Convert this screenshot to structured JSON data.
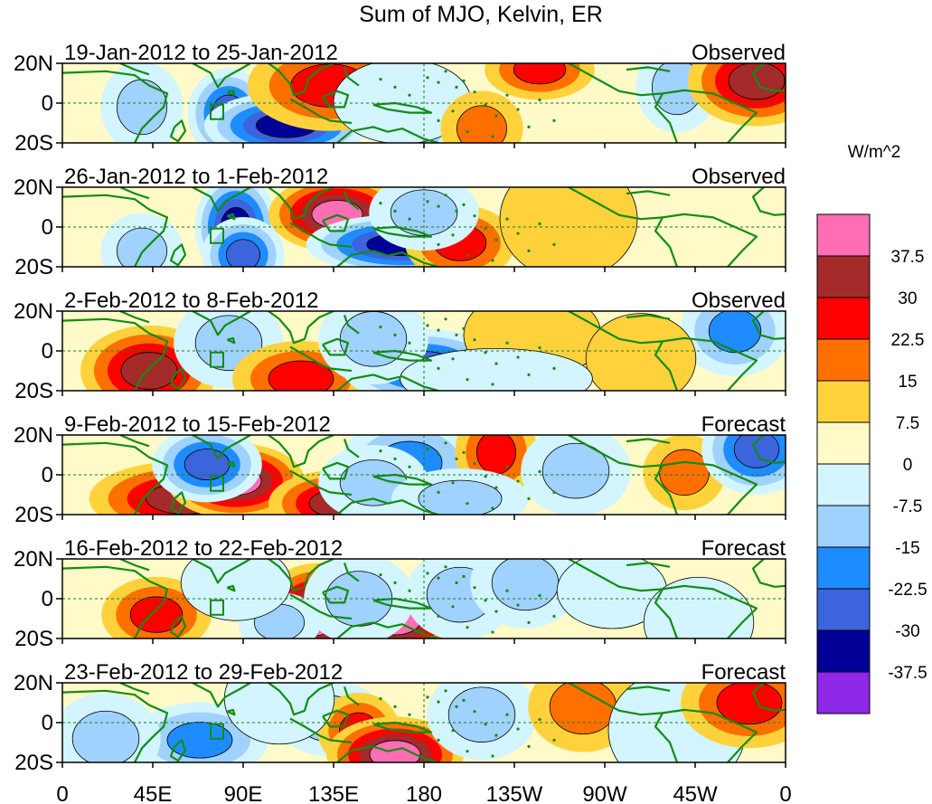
{
  "title": "Sum of MJO, Kelvin, ER",
  "units": "W/m^2",
  "lat_labels": [
    "20N",
    "0",
    "20S"
  ],
  "lon_labels": [
    "0",
    "45E",
    "90E",
    "135E",
    "180",
    "135W",
    "90W",
    "45W",
    "0"
  ],
  "panels": [
    {
      "period": "19-Jan-2012 to 25-Jan-2012",
      "status": "Observed"
    },
    {
      "period": "26-Jan-2012 to 1-Feb-2012",
      "status": "Observed"
    },
    {
      "period": "2-Feb-2012 to 8-Feb-2012",
      "status": "Observed"
    },
    {
      "period": "9-Feb-2012 to 15-Feb-2012",
      "status": "Forecast"
    },
    {
      "period": "16-Feb-2012 to 22-Feb-2012",
      "status": "Forecast"
    },
    {
      "period": "23-Feb-2012 to 29-Feb-2012",
      "status": "Forecast"
    }
  ],
  "legend": {
    "tick_labels": [
      "37.5",
      "30",
      "22.5",
      "15",
      "7.5",
      "0",
      "-7.5",
      "-15",
      "-22.5",
      "-30",
      "-37.5"
    ],
    "colors": [
      "#ff6eb4",
      "#a52a2a",
      "#ff0000",
      "#ff7000",
      "#ffd23c",
      "#fffac8",
      "#d2f5ff",
      "#a0d2ff",
      "#1e8cff",
      "#3c64dc",
      "#000096",
      "#8c28e6"
    ]
  },
  "colors": {
    "coastline": "#128c12",
    "dashed_line": "#1a7a1a"
  },
  "fields": [
    [
      [
        0.11,
        0.55,
        0.03,
        0.3,
        -2
      ],
      [
        0.23,
        0.63,
        0.03,
        0.3,
        -4
      ],
      [
        0.31,
        0.78,
        0.06,
        0.22,
        -5
      ],
      [
        0.37,
        0.28,
        0.06,
        0.3,
        3
      ],
      [
        0.49,
        0.67,
        0.03,
        0.3,
        -3
      ],
      [
        0.85,
        0.3,
        0.03,
        0.3,
        -2
      ],
      [
        0.96,
        0.22,
        0.05,
        0.3,
        4
      ],
      [
        0.66,
        0.08,
        0.04,
        0.2,
        3
      ],
      [
        0.47,
        0.48,
        0.05,
        0.28,
        -1
      ],
      [
        0.58,
        0.82,
        0.03,
        0.25,
        2
      ]
    ],
    [
      [
        0.24,
        0.5,
        0.03,
        0.35,
        -5
      ],
      [
        0.38,
        0.34,
        0.05,
        0.25,
        5
      ],
      [
        0.47,
        0.72,
        0.07,
        0.2,
        -5
      ],
      [
        0.55,
        0.7,
        0.04,
        0.25,
        3
      ],
      [
        0.5,
        0.32,
        0.04,
        0.25,
        -2
      ],
      [
        0.11,
        0.8,
        0.03,
        0.25,
        -2
      ],
      [
        0.25,
        0.85,
        0.03,
        0.25,
        -4
      ],
      [
        0.7,
        0.4,
        0.05,
        0.4,
        1
      ]
    ],
    [
      [
        0.12,
        0.75,
        0.05,
        0.3,
        4
      ],
      [
        0.23,
        0.4,
        0.04,
        0.3,
        -2
      ],
      [
        0.33,
        0.85,
        0.05,
        0.25,
        3
      ],
      [
        0.5,
        0.7,
        0.06,
        0.25,
        -4
      ],
      [
        0.43,
        0.35,
        0.04,
        0.3,
        -2
      ],
      [
        0.93,
        0.25,
        0.04,
        0.3,
        -3
      ],
      [
        0.65,
        0.3,
        0.05,
        0.3,
        1
      ],
      [
        0.8,
        0.6,
        0.04,
        0.3,
        1
      ],
      [
        0.6,
        0.85,
        0.07,
        0.2,
        -1
      ]
    ],
    [
      [
        0.17,
        0.8,
        0.07,
        0.25,
        4
      ],
      [
        0.24,
        0.58,
        0.05,
        0.25,
        5
      ],
      [
        0.2,
        0.37,
        0.04,
        0.25,
        -4
      ],
      [
        0.38,
        0.86,
        0.05,
        0.22,
        4
      ],
      [
        0.48,
        0.35,
        0.05,
        0.3,
        -3
      ],
      [
        0.43,
        0.6,
        0.04,
        0.25,
        -2
      ],
      [
        0.6,
        0.22,
        0.03,
        0.3,
        3
      ],
      [
        0.71,
        0.45,
        0.04,
        0.3,
        -2
      ],
      [
        0.86,
        0.47,
        0.03,
        0.25,
        2
      ],
      [
        0.96,
        0.18,
        0.04,
        0.3,
        -4
      ],
      [
        0.55,
        0.8,
        0.05,
        0.2,
        -2
      ]
    ],
    [
      [
        0.13,
        0.7,
        0.04,
        0.25,
        3
      ],
      [
        0.35,
        0.72,
        0.04,
        0.35,
        5
      ],
      [
        0.46,
        0.78,
        0.05,
        0.25,
        5
      ],
      [
        0.41,
        0.5,
        0.04,
        0.3,
        -2
      ],
      [
        0.3,
        0.8,
        0.03,
        0.2,
        -2
      ],
      [
        0.55,
        0.45,
        0.04,
        0.3,
        -2
      ],
      [
        0.64,
        0.3,
        0.04,
        0.3,
        -2
      ],
      [
        0.76,
        0.4,
        0.04,
        0.25,
        -1
      ],
      [
        0.88,
        0.8,
        0.04,
        0.3,
        -1
      ],
      [
        0.24,
        0.3,
        0.04,
        0.25,
        -1
      ]
    ],
    [
      [
        0.19,
        0.72,
        0.05,
        0.25,
        -3
      ],
      [
        0.37,
        0.45,
        0.04,
        0.25,
        -2
      ],
      [
        0.41,
        0.6,
        0.03,
        0.25,
        3
      ],
      [
        0.46,
        0.9,
        0.05,
        0.25,
        5
      ],
      [
        0.58,
        0.4,
        0.04,
        0.3,
        -2
      ],
      [
        0.72,
        0.3,
        0.04,
        0.3,
        2
      ],
      [
        0.85,
        0.6,
        0.05,
        0.4,
        -1
      ],
      [
        0.95,
        0.25,
        0.05,
        0.3,
        3
      ],
      [
        0.3,
        0.2,
        0.04,
        0.3,
        -1
      ],
      [
        0.06,
        0.7,
        0.04,
        0.3,
        -2
      ]
    ]
  ]
}
